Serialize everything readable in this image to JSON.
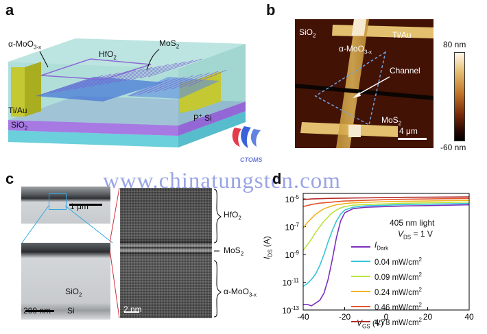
{
  "panels": {
    "a": {
      "label": "a",
      "labels": {
        "moo3": "α-MoO",
        "moo3_sub": "3-x",
        "hfo2": "HfO",
        "hfo2_sub": "2",
        "mos2": "MoS",
        "mos2_sub": "2",
        "tiau": "Ti/Au",
        "sio2": "SiO",
        "sio2_sub": "2",
        "psi": "P",
        "psi_sup": "+",
        "psi_tail": " Si"
      }
    },
    "b": {
      "label": "b",
      "labels": {
        "sio2": "SiO",
        "sio2_sub": "2",
        "tiau": "Ti/Au",
        "moo3": "α-MoO",
        "moo3_sub": "3-x",
        "channel": "Channel",
        "mos2": "MoS",
        "mos2_sub": "2",
        "scalebar": "4 μm"
      },
      "colorbar": {
        "max": "80 nm",
        "min": "-60 nm"
      }
    },
    "c": {
      "label": "c",
      "scalebars": {
        "top": "1 μm",
        "mid": "200 nm",
        "right": "2 nm"
      },
      "labels": {
        "sio2": "SiO",
        "sio2_sub": "2",
        "si": "Si",
        "hfo2": "HfO",
        "hfo2_sub": "2",
        "mos2": "MoS",
        "mos2_sub": "2",
        "moo3": "α-MoO",
        "moo3_sub": "3-x"
      }
    },
    "d": {
      "label": "d"
    }
  },
  "watermark": {
    "text": "www.chinatungsten.com",
    "logo_text": "CTOMS"
  },
  "chart_data": {
    "type": "line",
    "annotation": "405 nm light",
    "annotation2": "V",
    "annotation2_sub": "DS",
    "annotation2_tail": " = 1 V",
    "xlabel": "V",
    "xlabel_sub": "GS",
    "xlabel_tail": " (V)",
    "ylabel": "I",
    "ylabel_sub": "DS",
    "ylabel_tail": " (A)",
    "xlim": [
      -40,
      40
    ],
    "ylim_log10": [
      -13,
      -4.6
    ],
    "x_ticks": [
      "-40",
      "-20",
      "0",
      "20",
      "40"
    ],
    "y_ticks": [
      {
        "base": "10",
        "exp": "-5"
      },
      {
        "base": "10",
        "exp": "-7"
      },
      {
        "base": "10",
        "exp": "-9"
      },
      {
        "base": "10",
        "exp": "-11"
      },
      {
        "base": "10",
        "exp": "-13"
      }
    ],
    "series": [
      {
        "name": "I",
        "name_sub": "Dark",
        "color": "#7b2fbe",
        "x": [
          -40,
          -38,
          -36,
          -34,
          -32,
          -30,
          -28,
          -26,
          -24,
          -22,
          -20,
          -16,
          -10,
          0,
          10,
          20,
          30,
          40
        ],
        "log10y": [
          -12.6,
          -12.6,
          -12.7,
          -12.5,
          -12.3,
          -11.8,
          -10.8,
          -9.4,
          -7.8,
          -6.6,
          -6.0,
          -5.7,
          -5.6,
          -5.55,
          -5.5,
          -5.48,
          -5.45,
          -5.42
        ]
      },
      {
        "name": "0.04 mW/cm",
        "name_sup": "2",
        "color": "#35c6d6",
        "x": [
          -40,
          -38,
          -36,
          -34,
          -32,
          -30,
          -28,
          -26,
          -24,
          -22,
          -20,
          -16,
          -10,
          0,
          10,
          20,
          30,
          40
        ],
        "log10y": [
          -11.3,
          -11.1,
          -10.8,
          -10.4,
          -9.8,
          -9.0,
          -8.1,
          -7.3,
          -6.6,
          -6.1,
          -5.8,
          -5.6,
          -5.5,
          -5.45,
          -5.4,
          -5.38,
          -5.35,
          -5.32
        ]
      },
      {
        "name": "0.09 mW/cm",
        "name_sup": "2",
        "color": "#b9e63c",
        "x": [
          -40,
          -38,
          -36,
          -34,
          -32,
          -30,
          -28,
          -26,
          -24,
          -22,
          -20,
          -16,
          -10,
          0,
          10,
          20,
          30,
          40
        ],
        "log10y": [
          -8.7,
          -8.3,
          -7.9,
          -7.4,
          -7.0,
          -6.6,
          -6.3,
          -6.0,
          -5.8,
          -5.65,
          -5.55,
          -5.45,
          -5.4,
          -5.35,
          -5.3,
          -5.28,
          -5.25,
          -5.22
        ]
      },
      {
        "name": "0.24 mW/cm",
        "name_sup": "2",
        "color": "#f2b31d",
        "x": [
          -40,
          -38,
          -36,
          -34,
          -32,
          -30,
          -28,
          -26,
          -24,
          -22,
          -20,
          -16,
          -10,
          0,
          10,
          20,
          30,
          40
        ],
        "log10y": [
          -7.1,
          -6.7,
          -6.4,
          -6.1,
          -5.9,
          -5.7,
          -5.6,
          -5.5,
          -5.42,
          -5.38,
          -5.33,
          -5.28,
          -5.24,
          -5.2,
          -5.17,
          -5.15,
          -5.12,
          -5.1
        ]
      },
      {
        "name": "0.46 mW/cm",
        "name_sup": "2",
        "color": "#e2562b",
        "x": [
          -40,
          -36,
          -32,
          -28,
          -24,
          -20,
          -10,
          0,
          10,
          20,
          30,
          40
        ],
        "log10y": [
          -5.55,
          -5.4,
          -5.3,
          -5.25,
          -5.2,
          -5.15,
          -5.1,
          -5.05,
          -5.02,
          -5.0,
          -4.98,
          -4.96
        ]
      },
      {
        "name": "4.78 mW/cm",
        "name_sup": "2",
        "color": "#b52a2a",
        "x": [
          -40,
          -36,
          -32,
          -28,
          -24,
          -20,
          -10,
          0,
          10,
          20,
          30,
          40
        ],
        "log10y": [
          -5.05,
          -5.0,
          -4.98,
          -4.96,
          -4.95,
          -4.94,
          -4.92,
          -4.9,
          -4.88,
          -4.87,
          -4.86,
          -4.85
        ]
      }
    ]
  }
}
